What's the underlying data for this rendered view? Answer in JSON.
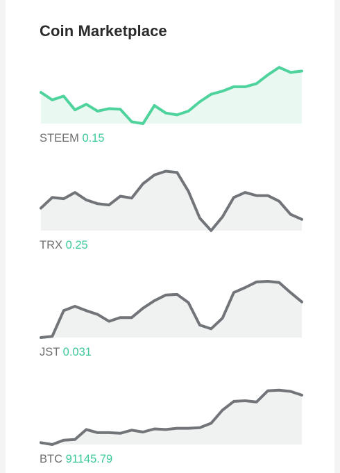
{
  "widget": {
    "title": "Coin Marketplace"
  },
  "coins": [
    {
      "symbol": "STEEM",
      "price": "0.15",
      "line_color": "#4fd39d",
      "fill_color": "#e9f8f1",
      "trend": [
        0.5,
        0.38,
        0.44,
        0.22,
        0.31,
        0.2,
        0.24,
        0.23,
        0.03,
        0.0,
        0.29,
        0.17,
        0.14,
        0.2,
        0.35,
        0.47,
        0.52,
        0.59,
        0.59,
        0.64,
        0.78,
        0.9,
        0.82,
        0.84
      ]
    },
    {
      "symbol": "TRX",
      "price": "0.25",
      "line_color": "#717579",
      "fill_color": "#f0f1f1",
      "trend": [
        0.36,
        0.53,
        0.51,
        0.61,
        0.49,
        0.43,
        0.41,
        0.55,
        0.52,
        0.75,
        0.89,
        0.95,
        0.93,
        0.63,
        0.2,
        0.0,
        0.22,
        0.53,
        0.61,
        0.56,
        0.56,
        0.47,
        0.26,
        0.18
      ]
    },
    {
      "symbol": "JST",
      "price": "0.031",
      "line_color": "#717579",
      "fill_color": "#f0f1f1",
      "trend": [
        0.0,
        0.02,
        0.43,
        0.5,
        0.43,
        0.37,
        0.26,
        0.32,
        0.32,
        0.47,
        0.59,
        0.68,
        0.69,
        0.56,
        0.2,
        0.14,
        0.31,
        0.72,
        0.8,
        0.89,
        0.9,
        0.88,
        0.72,
        0.57
      ]
    },
    {
      "symbol": "BTC",
      "price": "91145.79",
      "line_color": "#717579",
      "fill_color": "#f0f1f1",
      "trend": [
        0.03,
        0.0,
        0.07,
        0.08,
        0.24,
        0.19,
        0.19,
        0.18,
        0.23,
        0.2,
        0.25,
        0.24,
        0.26,
        0.26,
        0.27,
        0.34,
        0.55,
        0.69,
        0.7,
        0.68,
        0.86,
        0.87,
        0.85,
        0.79
      ]
    }
  ]
}
